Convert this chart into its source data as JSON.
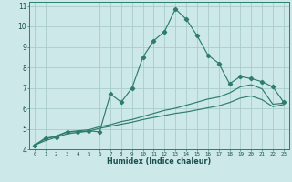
{
  "xlabel": "Humidex (Indice chaleur)",
  "bg_color": "#cce8e8",
  "grid_color": "#aacccc",
  "line_color": "#2e7d6b",
  "xlim": [
    -0.5,
    23.5
  ],
  "ylim": [
    4.0,
    11.2
  ],
  "xticks": [
    0,
    1,
    2,
    3,
    4,
    5,
    6,
    7,
    8,
    9,
    10,
    11,
    12,
    13,
    14,
    15,
    16,
    17,
    18,
    19,
    20,
    21,
    22,
    23
  ],
  "yticks": [
    4,
    5,
    6,
    7,
    8,
    9,
    10,
    11
  ],
  "series1_x": [
    0,
    1,
    2,
    3,
    4,
    5,
    6,
    7,
    8,
    9,
    10,
    11,
    12,
    13,
    14,
    15,
    16,
    17,
    18,
    19,
    20,
    21,
    22,
    23
  ],
  "series1_y": [
    4.2,
    4.55,
    4.6,
    4.85,
    4.85,
    4.9,
    4.85,
    6.7,
    6.3,
    7.0,
    8.5,
    9.3,
    9.75,
    10.85,
    10.35,
    9.55,
    8.6,
    8.2,
    7.2,
    7.55,
    7.45,
    7.3,
    7.05,
    6.3
  ],
  "series2_x": [
    0,
    1,
    2,
    3,
    4,
    5,
    6,
    7,
    8,
    9,
    10,
    11,
    12,
    13,
    14,
    15,
    16,
    17,
    18,
    19,
    20,
    21,
    22,
    23
  ],
  "series2_y": [
    4.2,
    4.5,
    4.65,
    4.85,
    4.9,
    4.95,
    5.1,
    5.2,
    5.35,
    5.45,
    5.6,
    5.75,
    5.9,
    6.0,
    6.15,
    6.3,
    6.45,
    6.55,
    6.75,
    7.05,
    7.15,
    6.95,
    6.2,
    6.25
  ],
  "series3_x": [
    0,
    1,
    2,
    3,
    4,
    5,
    6,
    7,
    8,
    9,
    10,
    11,
    12,
    13,
    14,
    15,
    16,
    17,
    18,
    19,
    20,
    21,
    22,
    23
  ],
  "series3_y": [
    4.2,
    4.42,
    4.58,
    4.75,
    4.82,
    4.88,
    5.02,
    5.12,
    5.22,
    5.32,
    5.45,
    5.55,
    5.65,
    5.75,
    5.82,
    5.92,
    6.02,
    6.12,
    6.28,
    6.5,
    6.6,
    6.42,
    6.08,
    6.18
  ]
}
